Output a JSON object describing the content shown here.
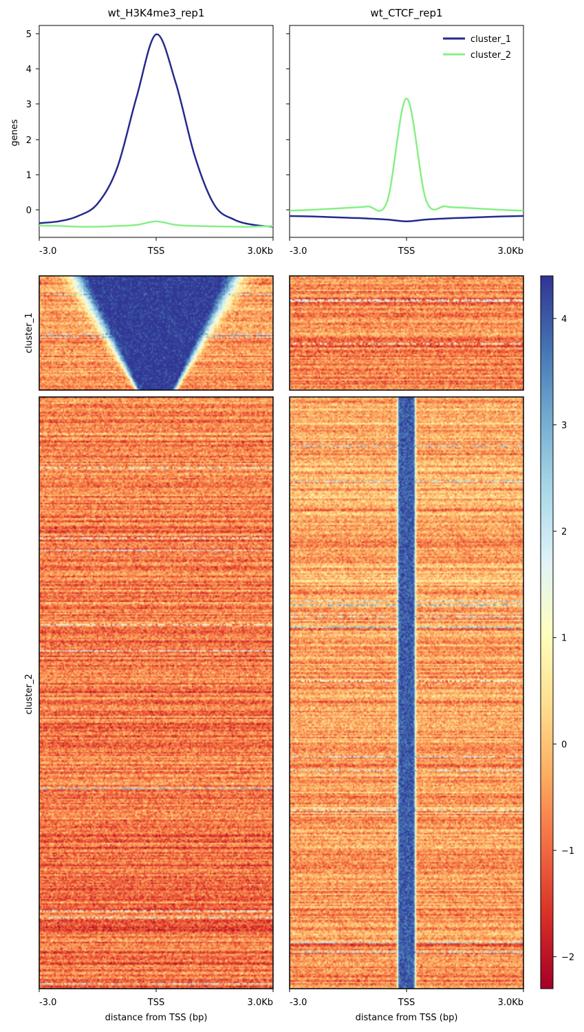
{
  "panels": [
    {
      "title": "wt_H3K4me3_rep1"
    },
    {
      "title": "wt_CTCF_rep1"
    }
  ],
  "profile_ylabel": "genes",
  "x_ticks": [
    "-3.0",
    "TSS",
    "3.0Kb"
  ],
  "xlabel": "distance from TSS (bp)",
  "row_labels": [
    "cluster_1",
    "cluster_2"
  ],
  "colormap": {
    "name": "RdYlBu",
    "min": -2.3,
    "max": 4.4,
    "ticks": [
      "4",
      "3",
      "2",
      "1",
      "0",
      "−2",
      "−1"
    ],
    "tick_values": [
      4,
      3,
      2,
      1,
      0,
      -2,
      -1
    ]
  },
  "colors": {
    "cluster_1": "#222a8c",
    "cluster_2": "#86f085",
    "high": "#313695",
    "low": "#a50026"
  },
  "chart_data": [
    {
      "type": "line",
      "title": "wt_H3K4me3_rep1",
      "xlabel": "",
      "ylabel": "genes",
      "x_ticks": [
        "-3.0",
        "TSS",
        "3.0Kb"
      ],
      "x": [
        -3000,
        -2500,
        -2000,
        -1500,
        -1000,
        -500,
        0,
        500,
        1000,
        1500,
        2000,
        2500,
        3000
      ],
      "ylim": [
        -0.75,
        5.2
      ],
      "y_ticks": [
        0,
        1,
        2,
        3,
        4,
        5
      ],
      "legend": {
        "position": "top-right",
        "entries": [
          "cluster_1",
          "cluster_2"
        ]
      },
      "series": [
        {
          "name": "cluster_1",
          "color": "#222a8c",
          "values": [
            -0.35,
            -0.3,
            -0.15,
            0.2,
            1.2,
            3.2,
            4.95,
            3.6,
            1.5,
            0.15,
            -0.25,
            -0.4,
            -0.45
          ]
        },
        {
          "name": "cluster_2",
          "color": "#86f085",
          "values": [
            -0.42,
            -0.43,
            -0.45,
            -0.45,
            -0.43,
            -0.4,
            -0.3,
            -0.4,
            -0.43,
            -0.44,
            -0.45,
            -0.45,
            -0.43
          ]
        }
      ]
    },
    {
      "type": "line",
      "title": "wt_CTCF_rep1",
      "xlabel": "",
      "ylabel": "",
      "x_ticks": [
        "-3.0",
        "TSS",
        "3.0Kb"
      ],
      "x": [
        -3000,
        -2500,
        -2000,
        -1500,
        -1000,
        -500,
        0,
        500,
        1000,
        1500,
        2000,
        2500,
        3000
      ],
      "ylim": [
        -0.75,
        5.2
      ],
      "legend": {
        "position": "top-right",
        "entries": [
          "cluster_1",
          "cluster_2"
        ]
      },
      "series": [
        {
          "name": "cluster_1",
          "color": "#222a8c",
          "values": [
            -0.15,
            -0.16,
            -0.18,
            -0.2,
            -0.22,
            -0.25,
            -0.3,
            -0.25,
            -0.22,
            -0.2,
            -0.18,
            -0.16,
            -0.15
          ]
        },
        {
          "name": "cluster_2",
          "color": "#86f085",
          "values": [
            0.0,
            0.02,
            0.05,
            0.08,
            0.12,
            0.25,
            3.15,
            0.3,
            0.12,
            0.08,
            0.05,
            0.02,
            0.0
          ]
        }
      ]
    },
    {
      "type": "heatmap",
      "title": "wt_H3K4me3_rep1",
      "xlabel": "distance from TSS (bp)",
      "x_ticks": [
        "-3.0",
        "TSS",
        "3.0Kb"
      ],
      "rows": [
        "cluster_1",
        "cluster_2"
      ],
      "clusters": [
        {
          "name": "cluster_1",
          "center_value": 4.4,
          "background": -0.3,
          "peak_halfwidth_bp_top": 1700,
          "peak_halfwidth_bp_bottom": 400
        },
        {
          "name": "cluster_2",
          "center_value": -0.6,
          "background": -0.6,
          "peak_halfwidth_bp_top": 0,
          "peak_halfwidth_bp_bottom": 0
        }
      ],
      "zlim": [
        -2.3,
        4.4
      ]
    },
    {
      "type": "heatmap",
      "title": "wt_CTCF_rep1",
      "xlabel": "distance from TSS (bp)",
      "x_ticks": [
        "-3.0",
        "TSS",
        "3.0Kb"
      ],
      "rows": [
        "cluster_1",
        "cluster_2"
      ],
      "clusters": [
        {
          "name": "cluster_1",
          "center_value": -0.5,
          "background": -0.5,
          "peak_halfwidth_bp_top": 0,
          "peak_halfwidth_bp_bottom": 0
        },
        {
          "name": "cluster_2",
          "center_value": 4.0,
          "background": -0.2,
          "peak_halfwidth_bp_top": 180,
          "peak_halfwidth_bp_bottom": 180
        }
      ],
      "zlim": [
        -2.3,
        4.4
      ]
    }
  ]
}
